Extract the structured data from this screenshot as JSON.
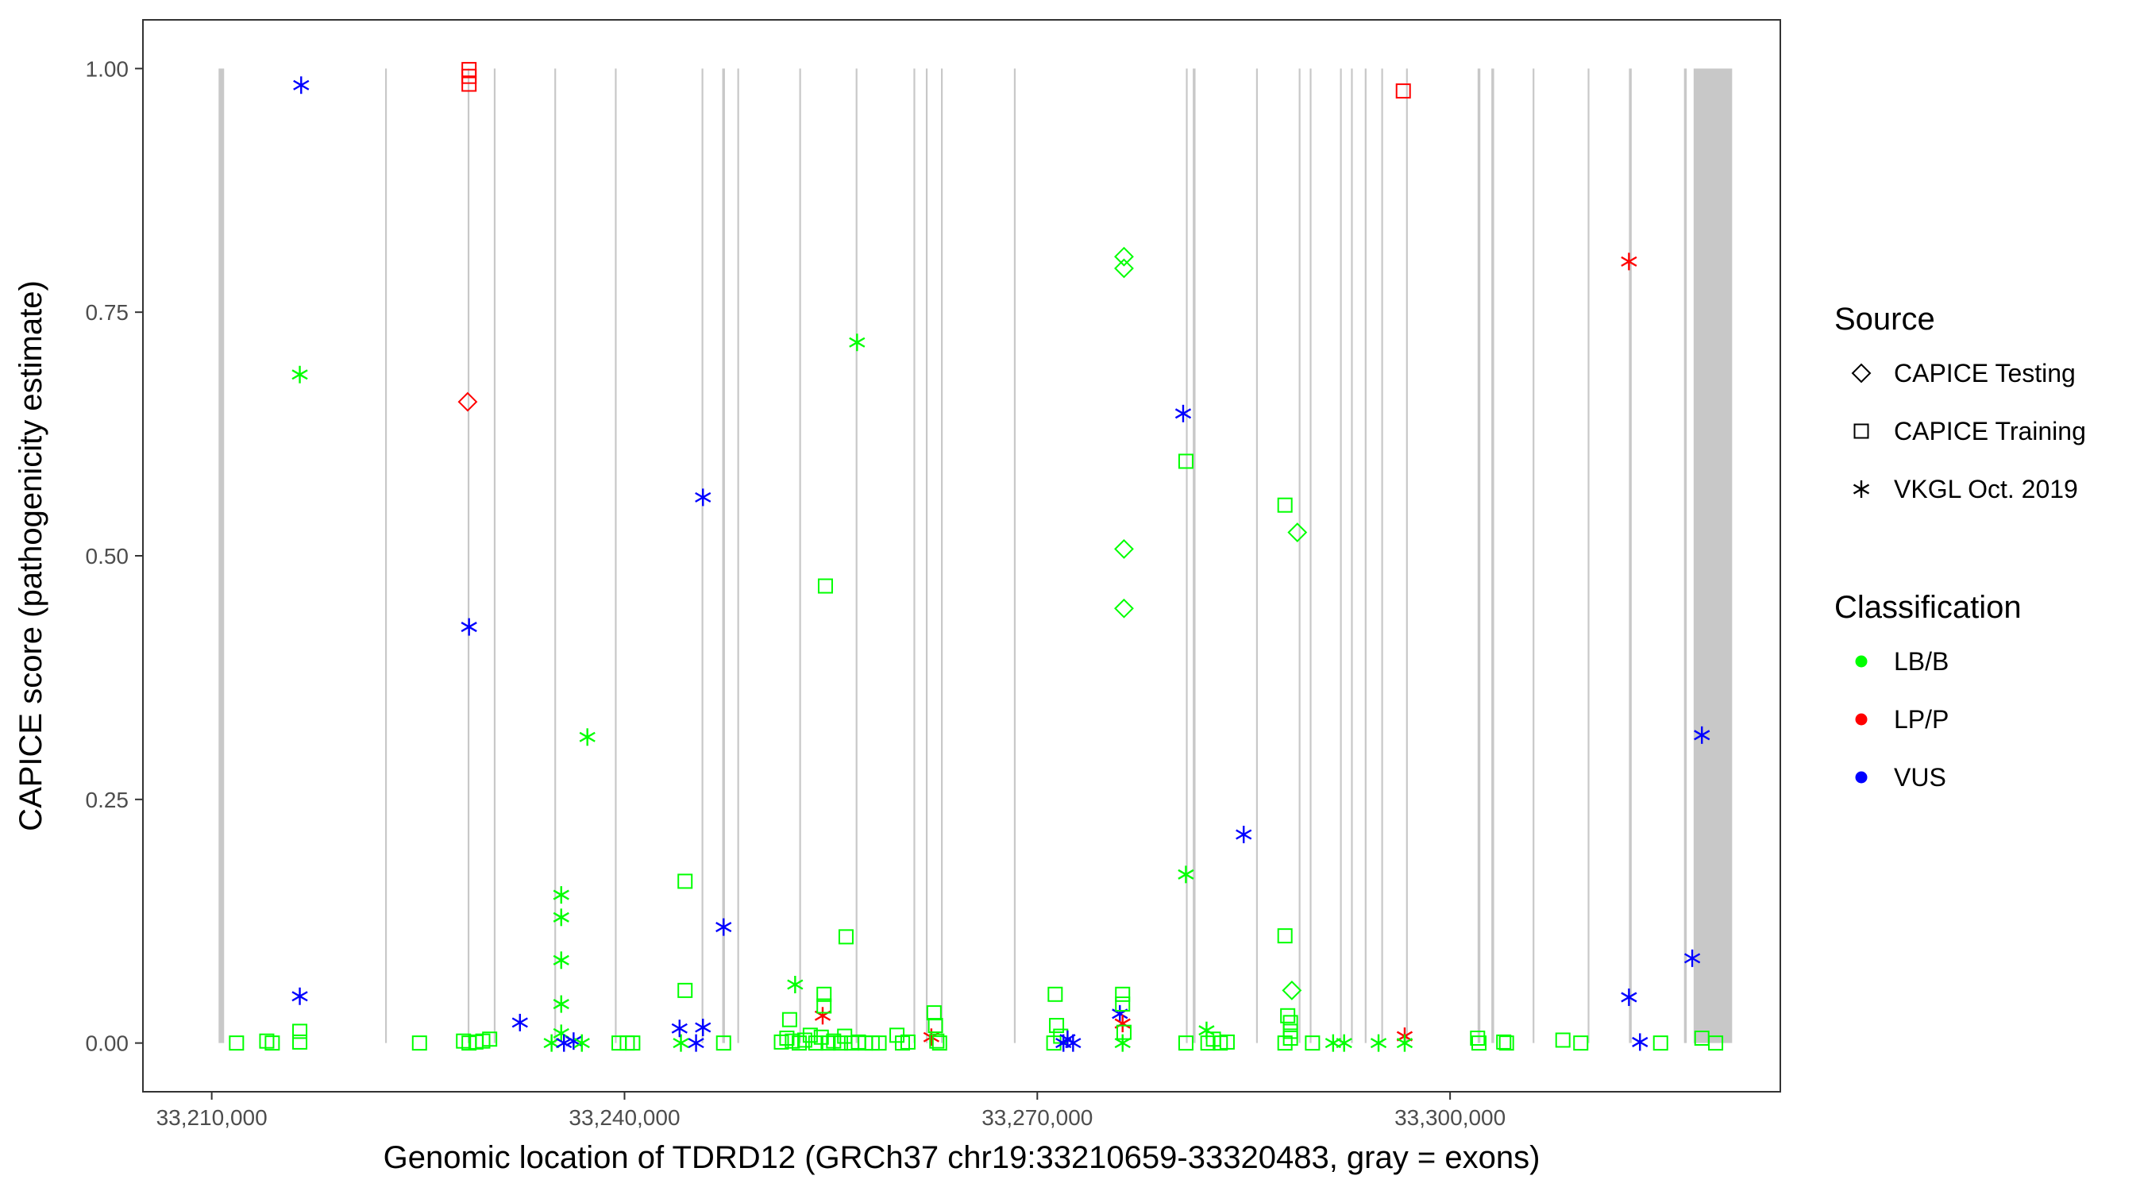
{
  "chart_data": {
    "type": "scatter",
    "xlabel": "Genomic location of TDRD12 (GRCh37 chr19:33210659-33320483, gray = exons)",
    "ylabel": "CAPICE score (pathogenicity estimate)",
    "xlim": [
      33205000,
      33324000
    ],
    "ylim": [
      -0.05,
      1.05
    ],
    "x_ticks": [
      {
        "value": 33210000,
        "label": "33,210,000"
      },
      {
        "value": 33240000,
        "label": "33,240,000"
      },
      {
        "value": 33270000,
        "label": "33,270,000"
      },
      {
        "value": 33300000,
        "label": "33,300,000"
      }
    ],
    "y_ticks": [
      {
        "value": 0,
        "label": "0.00"
      },
      {
        "value": 0.25,
        "label": "0.25"
      },
      {
        "value": 0.5,
        "label": "0.50"
      },
      {
        "value": 0.75,
        "label": "0.75"
      },
      {
        "value": 1.0,
        "label": "1.00"
      }
    ],
    "grid": false,
    "exons": [
      [
        33210500,
        33210900
      ],
      [
        33222600,
        33222700
      ],
      [
        33228600,
        33228700
      ],
      [
        33230500,
        33230600
      ],
      [
        33234900,
        33235000
      ],
      [
        33239300,
        33239400
      ],
      [
        33245600,
        33245700
      ],
      [
        33247100,
        33247300
      ],
      [
        33248200,
        33248300
      ],
      [
        33252700,
        33252800
      ],
      [
        33256800,
        33256900
      ],
      [
        33261000,
        33261100
      ],
      [
        33261900,
        33262000
      ],
      [
        33263000,
        33263100
      ],
      [
        33268300,
        33268400
      ],
      [
        33280800,
        33280900
      ],
      [
        33281300,
        33281500
      ],
      [
        33285900,
        33286000
      ],
      [
        33289000,
        33289100
      ],
      [
        33289800,
        33289900
      ],
      [
        33292000,
        33292100
      ],
      [
        33292800,
        33292900
      ],
      [
        33293800,
        33293900
      ],
      [
        33295000,
        33295100
      ],
      [
        33296800,
        33296900
      ],
      [
        33302000,
        33302200
      ],
      [
        33303000,
        33303200
      ],
      [
        33306000,
        33306100
      ],
      [
        33310000,
        33310100
      ],
      [
        33313000,
        33313200
      ],
      [
        33317000,
        33317200
      ],
      [
        33317700,
        33320500
      ]
    ],
    "legends": [
      {
        "title": "Source",
        "position": "right",
        "entries": [
          {
            "label": "CAPICE Testing",
            "shape": "diamond"
          },
          {
            "label": "CAPICE Training",
            "shape": "square"
          },
          {
            "label": "VKGL Oct. 2019",
            "shape": "asterisk"
          }
        ]
      },
      {
        "title": "Classification",
        "position": "right",
        "entries": [
          {
            "label": "LB/B",
            "color": "#00ff00"
          },
          {
            "label": "LP/P",
            "color": "#ff0000"
          },
          {
            "label": "VUS",
            "color": "#0000ff"
          }
        ]
      }
    ],
    "colors": {
      "LB/B": "#00ff00",
      "LP/P": "#ff0000",
      "VUS": "#0000ff"
    },
    "points": [
      {
        "x": 33211800,
        "y": 0.0,
        "source": "CAPICE Training",
        "class": "LB/B"
      },
      {
        "x": 33214000,
        "y": 0.002,
        "source": "CAPICE Training",
        "class": "LB/B"
      },
      {
        "x": 33214400,
        "y": 0.0,
        "source": "CAPICE Training",
        "class": "LB/B"
      },
      {
        "x": 33216400,
        "y": 0.012,
        "source": "CAPICE Training",
        "class": "LB/B"
      },
      {
        "x": 33216400,
        "y": 0.001,
        "source": "CAPICE Training",
        "class": "LB/B"
      },
      {
        "x": 33216400,
        "y": 0.048,
        "source": "VKGL Oct. 2019",
        "class": "VUS"
      },
      {
        "x": 33216400,
        "y": 0.686,
        "source": "VKGL Oct. 2019",
        "class": "LB/B"
      },
      {
        "x": 33216500,
        "y": 0.983,
        "source": "VKGL Oct. 2019",
        "class": "VUS"
      },
      {
        "x": 33225100,
        "y": 0.0,
        "source": "CAPICE Training",
        "class": "LB/B"
      },
      {
        "x": 33228300,
        "y": 0.002,
        "source": "CAPICE Training",
        "class": "LB/B"
      },
      {
        "x": 33228700,
        "y": 0.0,
        "source": "CAPICE Training",
        "class": "LB/B"
      },
      {
        "x": 33229200,
        "y": 0.001,
        "source": "CAPICE Training",
        "class": "LB/B"
      },
      {
        "x": 33229700,
        "y": 0.002,
        "source": "CAPICE Training",
        "class": "LB/B"
      },
      {
        "x": 33230200,
        "y": 0.004,
        "source": "CAPICE Training",
        "class": "LB/B"
      },
      {
        "x": 33228700,
        "y": 0.999,
        "source": "CAPICE Training",
        "class": "LP/P"
      },
      {
        "x": 33228700,
        "y": 0.992,
        "source": "CAPICE Training",
        "class": "LP/P"
      },
      {
        "x": 33228700,
        "y": 0.984,
        "source": "CAPICE Training",
        "class": "LP/P"
      },
      {
        "x": 33228600,
        "y": 0.658,
        "source": "CAPICE Testing",
        "class": "LP/P"
      },
      {
        "x": 33228700,
        "y": 0.427,
        "source": "VKGL Oct. 2019",
        "class": "VUS"
      },
      {
        "x": 33232400,
        "y": 0.021,
        "source": "VKGL Oct. 2019",
        "class": "VUS"
      },
      {
        "x": 33234700,
        "y": 0.0,
        "source": "VKGL Oct. 2019",
        "class": "LB/B"
      },
      {
        "x": 33235400,
        "y": 0.152,
        "source": "VKGL Oct. 2019",
        "class": "LB/B"
      },
      {
        "x": 33235400,
        "y": 0.129,
        "source": "VKGL Oct. 2019",
        "class": "LB/B"
      },
      {
        "x": 33235400,
        "y": 0.085,
        "source": "VKGL Oct. 2019",
        "class": "LB/B"
      },
      {
        "x": 33235400,
        "y": 0.04,
        "source": "VKGL Oct. 2019",
        "class": "LB/B"
      },
      {
        "x": 33235400,
        "y": 0.01,
        "source": "VKGL Oct. 2019",
        "class": "LB/B"
      },
      {
        "x": 33235600,
        "y": 0.0,
        "source": "VKGL Oct. 2019",
        "class": "VUS"
      },
      {
        "x": 33236300,
        "y": 0.002,
        "source": "VKGL Oct. 2019",
        "class": "VUS"
      },
      {
        "x": 33236900,
        "y": 0.0,
        "source": "VKGL Oct. 2019",
        "class": "LB/B"
      },
      {
        "x": 33237300,
        "y": 0.314,
        "source": "VKGL Oct. 2019",
        "class": "LB/B"
      },
      {
        "x": 33239600,
        "y": 0.0,
        "source": "CAPICE Training",
        "class": "LB/B"
      },
      {
        "x": 33240200,
        "y": 0.0,
        "source": "CAPICE Training",
        "class": "LB/B"
      },
      {
        "x": 33240600,
        "y": 0.0,
        "source": "CAPICE Training",
        "class": "LB/B"
      },
      {
        "x": 33244100,
        "y": 0.0,
        "source": "VKGL Oct. 2019",
        "class": "LB/B"
      },
      {
        "x": 33244000,
        "y": 0.015,
        "source": "VKGL Oct. 2019",
        "class": "VUS"
      },
      {
        "x": 33244400,
        "y": 0.166,
        "source": "CAPICE Training",
        "class": "LB/B"
      },
      {
        "x": 33244400,
        "y": 0.054,
        "source": "CAPICE Training",
        "class": "LB/B"
      },
      {
        "x": 33245200,
        "y": 0.0,
        "source": "VKGL Oct. 2019",
        "class": "VUS"
      },
      {
        "x": 33245700,
        "y": 0.016,
        "source": "VKGL Oct. 2019",
        "class": "VUS"
      },
      {
        "x": 33245700,
        "y": 0.56,
        "source": "VKGL Oct. 2019",
        "class": "VUS"
      },
      {
        "x": 33247200,
        "y": 0.119,
        "source": "VKGL Oct. 2019",
        "class": "VUS"
      },
      {
        "x": 33247200,
        "y": 0.0,
        "source": "CAPICE Training",
        "class": "LB/B"
      },
      {
        "x": 33251400,
        "y": 0.001,
        "source": "CAPICE Training",
        "class": "LB/B"
      },
      {
        "x": 33251800,
        "y": 0.005,
        "source": "CAPICE Training",
        "class": "LB/B"
      },
      {
        "x": 33252200,
        "y": 0.002,
        "source": "CAPICE Training",
        "class": "LB/B"
      },
      {
        "x": 33252000,
        "y": 0.024,
        "source": "CAPICE Training",
        "class": "LB/B"
      },
      {
        "x": 33252400,
        "y": 0.06,
        "source": "VKGL Oct. 2019",
        "class": "LB/B"
      },
      {
        "x": 33252700,
        "y": 0.0,
        "source": "CAPICE Training",
        "class": "LB/B"
      },
      {
        "x": 33253100,
        "y": 0.003,
        "source": "CAPICE Training",
        "class": "LB/B"
      },
      {
        "x": 33253500,
        "y": 0.008,
        "source": "CAPICE Training",
        "class": "LB/B"
      },
      {
        "x": 33253900,
        "y": 0.0,
        "source": "CAPICE Training",
        "class": "LB/B"
      },
      {
        "x": 33254300,
        "y": 0.006,
        "source": "CAPICE Training",
        "class": "LB/B"
      },
      {
        "x": 33254400,
        "y": 0.028,
        "source": "VKGL Oct. 2019",
        "class": "LP/P"
      },
      {
        "x": 33254500,
        "y": 0.05,
        "source": "CAPICE Training",
        "class": "LB/B"
      },
      {
        "x": 33254500,
        "y": 0.038,
        "source": "CAPICE Training",
        "class": "LB/B"
      },
      {
        "x": 33254600,
        "y": 0.469,
        "source": "CAPICE Training",
        "class": "LB/B"
      },
      {
        "x": 33254800,
        "y": 0.0,
        "source": "CAPICE Training",
        "class": "LB/B"
      },
      {
        "x": 33255200,
        "y": 0.002,
        "source": "CAPICE Training",
        "class": "LB/B"
      },
      {
        "x": 33255700,
        "y": 0.0,
        "source": "CAPICE Training",
        "class": "LB/B"
      },
      {
        "x": 33256000,
        "y": 0.007,
        "source": "CAPICE Training",
        "class": "LB/B"
      },
      {
        "x": 33256100,
        "y": 0.109,
        "source": "CAPICE Training",
        "class": "LB/B"
      },
      {
        "x": 33256500,
        "y": 0.0,
        "source": "CAPICE Training",
        "class": "LB/B"
      },
      {
        "x": 33256900,
        "y": 0.719,
        "source": "VKGL Oct. 2019",
        "class": "LB/B"
      },
      {
        "x": 33257000,
        "y": 0.001,
        "source": "CAPICE Training",
        "class": "LB/B"
      },
      {
        "x": 33257500,
        "y": 0.0,
        "source": "CAPICE Training",
        "class": "LB/B"
      },
      {
        "x": 33258000,
        "y": 0.0,
        "source": "CAPICE Training",
        "class": "LB/B"
      },
      {
        "x": 33258500,
        "y": 0.0,
        "source": "CAPICE Training",
        "class": "LB/B"
      },
      {
        "x": 33259800,
        "y": 0.008,
        "source": "CAPICE Training",
        "class": "LB/B"
      },
      {
        "x": 33260200,
        "y": 0.0,
        "source": "CAPICE Training",
        "class": "LB/B"
      },
      {
        "x": 33260600,
        "y": 0.001,
        "source": "CAPICE Training",
        "class": "LB/B"
      },
      {
        "x": 33262300,
        "y": 0.006,
        "source": "VKGL Oct. 2019",
        "class": "LP/P"
      },
      {
        "x": 33262500,
        "y": 0.031,
        "source": "CAPICE Training",
        "class": "LB/B"
      },
      {
        "x": 33262600,
        "y": 0.018,
        "source": "CAPICE Training",
        "class": "LB/B"
      },
      {
        "x": 33262900,
        "y": 0.0,
        "source": "CAPICE Training",
        "class": "LB/B"
      },
      {
        "x": 33262700,
        "y": 0.002,
        "source": "CAPICE Training",
        "class": "LB/B"
      },
      {
        "x": 33271300,
        "y": 0.05,
        "source": "CAPICE Training",
        "class": "LB/B"
      },
      {
        "x": 33271400,
        "y": 0.018,
        "source": "CAPICE Training",
        "class": "LB/B"
      },
      {
        "x": 33271200,
        "y": 0.0,
        "source": "CAPICE Training",
        "class": "LB/B"
      },
      {
        "x": 33271700,
        "y": 0.007,
        "source": "CAPICE Training",
        "class": "LB/B"
      },
      {
        "x": 33271900,
        "y": 0.0,
        "source": "VKGL Oct. 2019",
        "class": "VUS"
      },
      {
        "x": 33272200,
        "y": 0.004,
        "source": "VKGL Oct. 2019",
        "class": "VUS"
      },
      {
        "x": 33272600,
        "y": 0.0,
        "source": "VKGL Oct. 2019",
        "class": "VUS"
      },
      {
        "x": 33276000,
        "y": 0.03,
        "source": "VKGL Oct. 2019",
        "class": "VUS"
      },
      {
        "x": 33276200,
        "y": 0.05,
        "source": "CAPICE Training",
        "class": "LB/B"
      },
      {
        "x": 33276200,
        "y": 0.04,
        "source": "CAPICE Training",
        "class": "LB/B"
      },
      {
        "x": 33276200,
        "y": 0.02,
        "source": "VKGL Oct. 2019",
        "class": "LP/P"
      },
      {
        "x": 33276300,
        "y": 0.011,
        "source": "CAPICE Training",
        "class": "LB/B"
      },
      {
        "x": 33276200,
        "y": 0.0,
        "source": "VKGL Oct. 2019",
        "class": "LB/B"
      },
      {
        "x": 33276300,
        "y": 0.807,
        "source": "CAPICE Testing",
        "class": "LB/B"
      },
      {
        "x": 33276300,
        "y": 0.795,
        "source": "CAPICE Testing",
        "class": "LB/B"
      },
      {
        "x": 33276300,
        "y": 0.507,
        "source": "CAPICE Testing",
        "class": "LB/B"
      },
      {
        "x": 33276300,
        "y": 0.446,
        "source": "CAPICE Testing",
        "class": "LB/B"
      },
      {
        "x": 33280600,
        "y": 0.646,
        "source": "VKGL Oct. 2019",
        "class": "VUS"
      },
      {
        "x": 33280800,
        "y": 0.597,
        "source": "CAPICE Training",
        "class": "LB/B"
      },
      {
        "x": 33280800,
        "y": 0.173,
        "source": "VKGL Oct. 2019",
        "class": "LB/B"
      },
      {
        "x": 33280800,
        "y": 0.0,
        "source": "CAPICE Training",
        "class": "LB/B"
      },
      {
        "x": 33282300,
        "y": 0.013,
        "source": "VKGL Oct. 2019",
        "class": "LB/B"
      },
      {
        "x": 33282400,
        "y": 0.0,
        "source": "CAPICE Training",
        "class": "LB/B"
      },
      {
        "x": 33282800,
        "y": 0.004,
        "source": "CAPICE Training",
        "class": "LB/B"
      },
      {
        "x": 33283300,
        "y": 0.0,
        "source": "CAPICE Training",
        "class": "LB/B"
      },
      {
        "x": 33283800,
        "y": 0.001,
        "source": "CAPICE Training",
        "class": "LB/B"
      },
      {
        "x": 33285000,
        "y": 0.214,
        "source": "VKGL Oct. 2019",
        "class": "VUS"
      },
      {
        "x": 33288000,
        "y": 0.552,
        "source": "CAPICE Training",
        "class": "LB/B"
      },
      {
        "x": 33288000,
        "y": 0.11,
        "source": "CAPICE Training",
        "class": "LB/B"
      },
      {
        "x": 33288200,
        "y": 0.028,
        "source": "CAPICE Training",
        "class": "LB/B"
      },
      {
        "x": 33288400,
        "y": 0.021,
        "source": "CAPICE Training",
        "class": "LB/B"
      },
      {
        "x": 33288400,
        "y": 0.012,
        "source": "CAPICE Training",
        "class": "LB/B"
      },
      {
        "x": 33288400,
        "y": 0.005,
        "source": "CAPICE Training",
        "class": "LB/B"
      },
      {
        "x": 33288000,
        "y": 0.0,
        "source": "CAPICE Training",
        "class": "LB/B"
      },
      {
        "x": 33288500,
        "y": 0.054,
        "source": "CAPICE Testing",
        "class": "LB/B"
      },
      {
        "x": 33288900,
        "y": 0.524,
        "source": "CAPICE Testing",
        "class": "LB/B"
      },
      {
        "x": 33290000,
        "y": 0.0,
        "source": "CAPICE Training",
        "class": "LB/B"
      },
      {
        "x": 33291500,
        "y": 0.0,
        "source": "VKGL Oct. 2019",
        "class": "LB/B"
      },
      {
        "x": 33292300,
        "y": 0.0,
        "source": "VKGL Oct. 2019",
        "class": "LB/B"
      },
      {
        "x": 33294800,
        "y": 0.0,
        "source": "VKGL Oct. 2019",
        "class": "LB/B"
      },
      {
        "x": 33296700,
        "y": 0.007,
        "source": "VKGL Oct. 2019",
        "class": "LP/P"
      },
      {
        "x": 33296700,
        "y": 0.0,
        "source": "VKGL Oct. 2019",
        "class": "LB/B"
      },
      {
        "x": 33296600,
        "y": 0.977,
        "source": "CAPICE Training",
        "class": "LP/P"
      },
      {
        "x": 33302000,
        "y": 0.005,
        "source": "CAPICE Training",
        "class": "LB/B"
      },
      {
        "x": 33302100,
        "y": 0.0,
        "source": "CAPICE Training",
        "class": "LB/B"
      },
      {
        "x": 33303900,
        "y": 0.001,
        "source": "CAPICE Training",
        "class": "LB/B"
      },
      {
        "x": 33304100,
        "y": 0.0,
        "source": "CAPICE Training",
        "class": "LB/B"
      },
      {
        "x": 33308200,
        "y": 0.003,
        "source": "CAPICE Training",
        "class": "LB/B"
      },
      {
        "x": 33309500,
        "y": 0.0,
        "source": "CAPICE Training",
        "class": "LB/B"
      },
      {
        "x": 33313000,
        "y": 0.802,
        "source": "VKGL Oct. 2019",
        "class": "LP/P"
      },
      {
        "x": 33313000,
        "y": 0.047,
        "source": "VKGL Oct. 2019",
        "class": "VUS"
      },
      {
        "x": 33313800,
        "y": 0.001,
        "source": "VKGL Oct. 2019",
        "class": "VUS"
      },
      {
        "x": 33315300,
        "y": 0.0,
        "source": "CAPICE Training",
        "class": "LB/B"
      },
      {
        "x": 33317600,
        "y": 0.087,
        "source": "VKGL Oct. 2019",
        "class": "VUS"
      },
      {
        "x": 33318300,
        "y": 0.316,
        "source": "VKGL Oct. 2019",
        "class": "VUS"
      },
      {
        "x": 33318300,
        "y": 0.005,
        "source": "CAPICE Training",
        "class": "LB/B"
      },
      {
        "x": 33319300,
        "y": 0.0,
        "source": "CAPICE Training",
        "class": "LB/B"
      }
    ]
  }
}
